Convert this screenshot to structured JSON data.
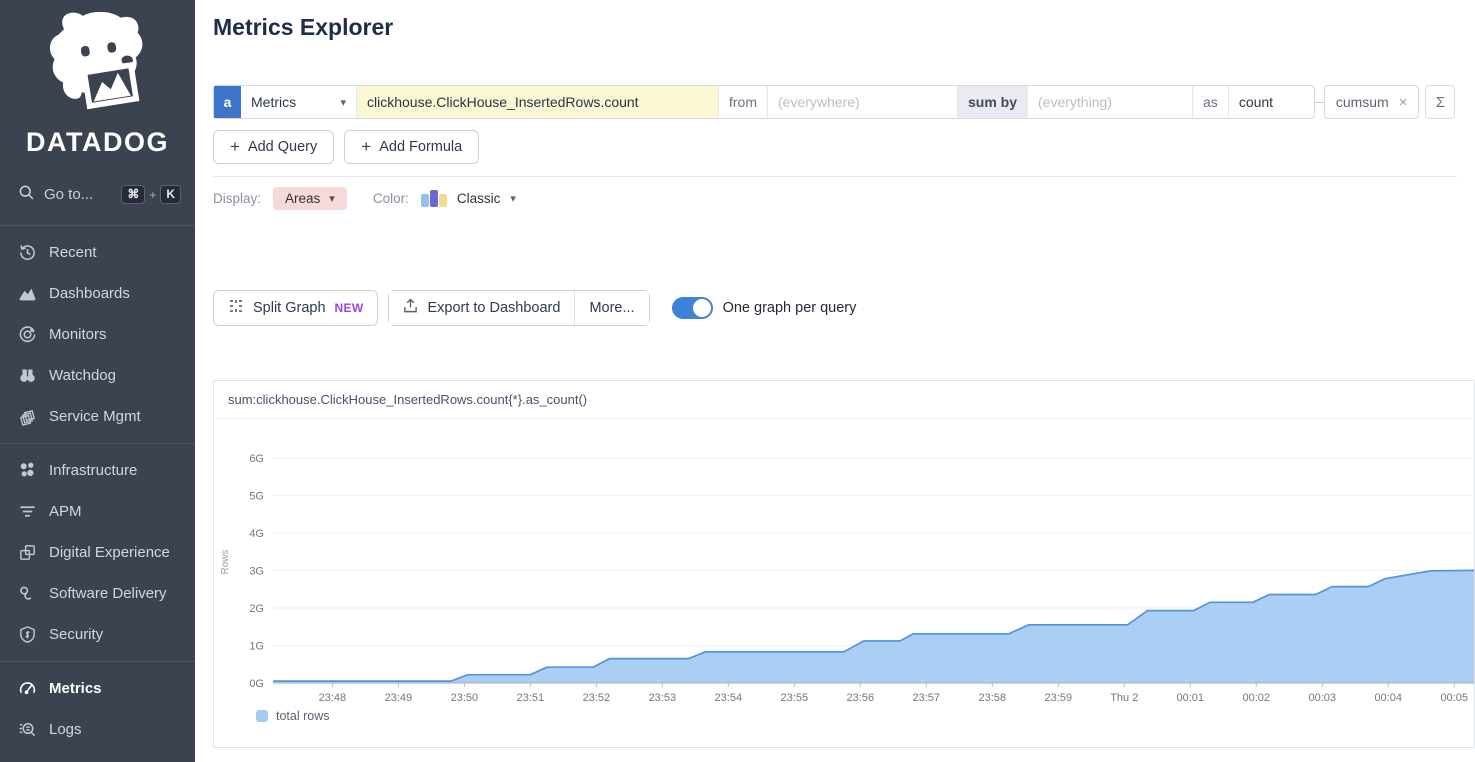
{
  "sidebar": {
    "brand": "DATADOG",
    "goto": {
      "label": "Go to...",
      "key_cmd": "⌘",
      "plus": "+",
      "key_k": "K"
    },
    "sections": [
      {
        "items": [
          {
            "label": "Recent"
          },
          {
            "label": "Dashboards"
          },
          {
            "label": "Monitors"
          },
          {
            "label": "Watchdog"
          },
          {
            "label": "Service Mgmt"
          }
        ]
      },
      {
        "items": [
          {
            "label": "Infrastructure"
          },
          {
            "label": "APM"
          },
          {
            "label": "Digital Experience"
          },
          {
            "label": "Software Delivery"
          },
          {
            "label": "Security"
          }
        ]
      },
      {
        "items": [
          {
            "label": "Metrics",
            "active": true
          },
          {
            "label": "Logs"
          }
        ]
      }
    ]
  },
  "header": {
    "title": "Metrics Explorer"
  },
  "query": {
    "letter": "a",
    "source": "Metrics",
    "metric_value": "clickhouse.ClickHouse_InsertedRows.count",
    "from_label": "from",
    "from_placeholder": "(everywhere)",
    "sumby_label": "sum by",
    "sumby_placeholder": "(everything)",
    "as_label": "as",
    "as_value": "count",
    "function_pill": "cumsum",
    "close_glyph": "×",
    "sigma_glyph": "Σ",
    "chevron_glyph": "▾"
  },
  "actions": {
    "plus": "+",
    "add_query": "Add Query",
    "add_formula": "Add Formula"
  },
  "display": {
    "label": "Display:",
    "mode": "Areas",
    "color_label": "Color:",
    "palette_name": "Classic",
    "palette_colors": [
      "#93bff0",
      "#6c67d9",
      "#f2da90"
    ]
  },
  "tools": {
    "split_graph": "Split Graph",
    "new_badge": "NEW",
    "export": "Export to Dashboard",
    "more": "More...",
    "toggle_label": "One graph per query",
    "toggle_on": true,
    "toggle_color": "#3d83d8"
  },
  "chart_data": {
    "type": "area",
    "title": "sum:clickhouse.ClickHouse_InsertedRows.count{*}.as_count()",
    "ylabel": "Rows",
    "yticks": [
      "0G",
      "1G",
      "2G",
      "3G",
      "4G",
      "5G",
      "6G"
    ],
    "ylim": [
      0,
      6.45
    ],
    "xlim": [
      0,
      18.2
    ],
    "x_unit": "minutes_since_23:47",
    "grid": true,
    "legend_position": "bottom-left",
    "xticks": [
      {
        "t": 0.9,
        "label": "23:48"
      },
      {
        "t": 1.9,
        "label": "23:49"
      },
      {
        "t": 2.9,
        "label": "23:50"
      },
      {
        "t": 3.9,
        "label": "23:51"
      },
      {
        "t": 4.9,
        "label": "23:52"
      },
      {
        "t": 5.9,
        "label": "23:53"
      },
      {
        "t": 6.9,
        "label": "23:54"
      },
      {
        "t": 7.9,
        "label": "23:55"
      },
      {
        "t": 8.9,
        "label": "23:56"
      },
      {
        "t": 9.9,
        "label": "23:57"
      },
      {
        "t": 10.9,
        "label": "23:58"
      },
      {
        "t": 11.9,
        "label": "23:59"
      },
      {
        "t": 12.9,
        "label": "Thu 2"
      },
      {
        "t": 13.9,
        "label": "00:01"
      },
      {
        "t": 14.9,
        "label": "00:02"
      },
      {
        "t": 15.9,
        "label": "00:03"
      },
      {
        "t": 16.9,
        "label": "00:04"
      },
      {
        "t": 17.9,
        "label": "00:05"
      }
    ],
    "series": [
      {
        "name": "total rows",
        "color": "#5593dc",
        "fill": "#abcef5",
        "points_unit": "[minutes_since_23:47, gigarows]",
        "points": [
          [
            0,
            0.05
          ],
          [
            2.7,
            0.05
          ],
          [
            2.95,
            0.22
          ],
          [
            3.9,
            0.22
          ],
          [
            4.15,
            0.42
          ],
          [
            4.85,
            0.42
          ],
          [
            5.1,
            0.65
          ],
          [
            6.3,
            0.65
          ],
          [
            6.55,
            0.83
          ],
          [
            8.65,
            0.83
          ],
          [
            8.95,
            1.12
          ],
          [
            9.5,
            1.12
          ],
          [
            9.7,
            1.31
          ],
          [
            11.15,
            1.31
          ],
          [
            11.45,
            1.55
          ],
          [
            12.95,
            1.55
          ],
          [
            13.25,
            1.93
          ],
          [
            13.95,
            1.93
          ],
          [
            14.2,
            2.15
          ],
          [
            14.85,
            2.15
          ],
          [
            15.1,
            2.36
          ],
          [
            15.8,
            2.36
          ],
          [
            16.05,
            2.57
          ],
          [
            16.6,
            2.57
          ],
          [
            16.85,
            2.78
          ],
          [
            17.55,
            2.99
          ],
          [
            18.2,
            3.0
          ]
        ]
      }
    ]
  }
}
